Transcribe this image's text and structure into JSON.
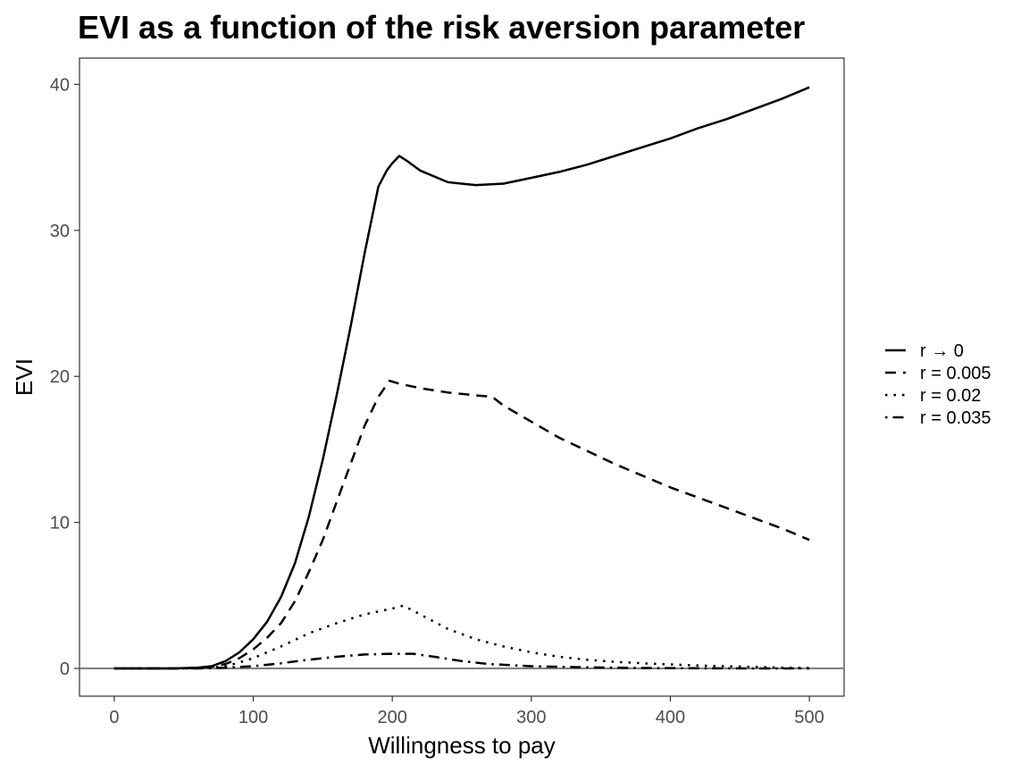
{
  "chart_data": {
    "type": "line",
    "title": "EVI as a function of the risk aversion parameter",
    "xlabel": "Willingness to pay",
    "ylabel": "EVI",
    "xlim": [
      -25,
      525
    ],
    "ylim": [
      -1.9,
      41.8
    ],
    "x_ticks": [
      0,
      100,
      200,
      300,
      400,
      500
    ],
    "y_ticks": [
      0,
      10,
      20,
      30,
      40
    ],
    "grid": false,
    "reference_line_y": 0,
    "legend_position": "right",
    "series": [
      {
        "name": "r → 0",
        "dash": "solid",
        "points": [
          [
            0,
            0
          ],
          [
            40,
            0
          ],
          [
            60,
            0.05
          ],
          [
            70,
            0.15
          ],
          [
            80,
            0.5
          ],
          [
            90,
            1.1
          ],
          [
            100,
            2.0
          ],
          [
            110,
            3.2
          ],
          [
            120,
            4.9
          ],
          [
            130,
            7.2
          ],
          [
            140,
            10.4
          ],
          [
            150,
            14.3
          ],
          [
            160,
            18.7
          ],
          [
            170,
            23.4
          ],
          [
            180,
            28.4
          ],
          [
            190,
            33.0
          ],
          [
            196,
            34.1
          ],
          [
            200,
            34.6
          ],
          [
            205,
            35.1
          ],
          [
            210,
            34.8
          ],
          [
            220,
            34.1
          ],
          [
            240,
            33.3
          ],
          [
            260,
            33.1
          ],
          [
            280,
            33.2
          ],
          [
            300,
            33.6
          ],
          [
            320,
            34.0
          ],
          [
            340,
            34.5
          ],
          [
            360,
            35.1
          ],
          [
            380,
            35.7
          ],
          [
            400,
            36.3
          ],
          [
            420,
            37.0
          ],
          [
            440,
            37.6
          ],
          [
            460,
            38.3
          ],
          [
            480,
            39.0
          ],
          [
            500,
            39.8
          ]
        ]
      },
      {
        "name": "r = 0.005",
        "dash": "dashed",
        "points": [
          [
            0,
            0
          ],
          [
            50,
            0
          ],
          [
            70,
            0.1
          ],
          [
            80,
            0.3
          ],
          [
            90,
            0.7
          ],
          [
            100,
            1.3
          ],
          [
            110,
            2.1
          ],
          [
            120,
            3.1
          ],
          [
            130,
            4.6
          ],
          [
            140,
            6.6
          ],
          [
            150,
            8.8
          ],
          [
            160,
            11.4
          ],
          [
            170,
            14.0
          ],
          [
            180,
            16.6
          ],
          [
            190,
            18.6
          ],
          [
            198,
            19.7
          ],
          [
            205,
            19.5
          ],
          [
            220,
            19.2
          ],
          [
            240,
            18.9
          ],
          [
            260,
            18.7
          ],
          [
            272,
            18.6
          ],
          [
            280,
            18.0
          ],
          [
            300,
            16.9
          ],
          [
            320,
            15.8
          ],
          [
            340,
            14.9
          ],
          [
            360,
            14.0
          ],
          [
            380,
            13.2
          ],
          [
            400,
            12.4
          ],
          [
            420,
            11.7
          ],
          [
            440,
            11.0
          ],
          [
            460,
            10.3
          ],
          [
            480,
            9.6
          ],
          [
            500,
            8.8
          ]
        ]
      },
      {
        "name": "r = 0.02",
        "dash": "dotted",
        "points": [
          [
            0,
            0
          ],
          [
            50,
            0
          ],
          [
            70,
            0.05
          ],
          [
            80,
            0.15
          ],
          [
            90,
            0.4
          ],
          [
            100,
            0.7
          ],
          [
            120,
            1.5
          ],
          [
            140,
            2.4
          ],
          [
            160,
            3.1
          ],
          [
            180,
            3.7
          ],
          [
            200,
            4.1
          ],
          [
            208,
            4.3
          ],
          [
            220,
            3.7
          ],
          [
            240,
            2.7
          ],
          [
            260,
            2.0
          ],
          [
            280,
            1.5
          ],
          [
            300,
            1.1
          ],
          [
            320,
            0.8
          ],
          [
            340,
            0.6
          ],
          [
            360,
            0.45
          ],
          [
            380,
            0.35
          ],
          [
            400,
            0.27
          ],
          [
            420,
            0.2
          ],
          [
            440,
            0.15
          ],
          [
            460,
            0.1
          ],
          [
            480,
            0.05
          ],
          [
            500,
            0.03
          ]
        ]
      },
      {
        "name": "r = 0.035",
        "dash": "dotdash",
        "points": [
          [
            0,
            0
          ],
          [
            60,
            0
          ],
          [
            80,
            0.05
          ],
          [
            100,
            0.15
          ],
          [
            120,
            0.35
          ],
          [
            140,
            0.6
          ],
          [
            160,
            0.8
          ],
          [
            180,
            0.95
          ],
          [
            200,
            1.0
          ],
          [
            215,
            1.0
          ],
          [
            230,
            0.8
          ],
          [
            250,
            0.5
          ],
          [
            270,
            0.3
          ],
          [
            300,
            0.15
          ],
          [
            340,
            0.07
          ],
          [
            380,
            0.03
          ],
          [
            420,
            0.01
          ],
          [
            460,
            0.0
          ],
          [
            500,
            0.0
          ]
        ]
      }
    ]
  }
}
